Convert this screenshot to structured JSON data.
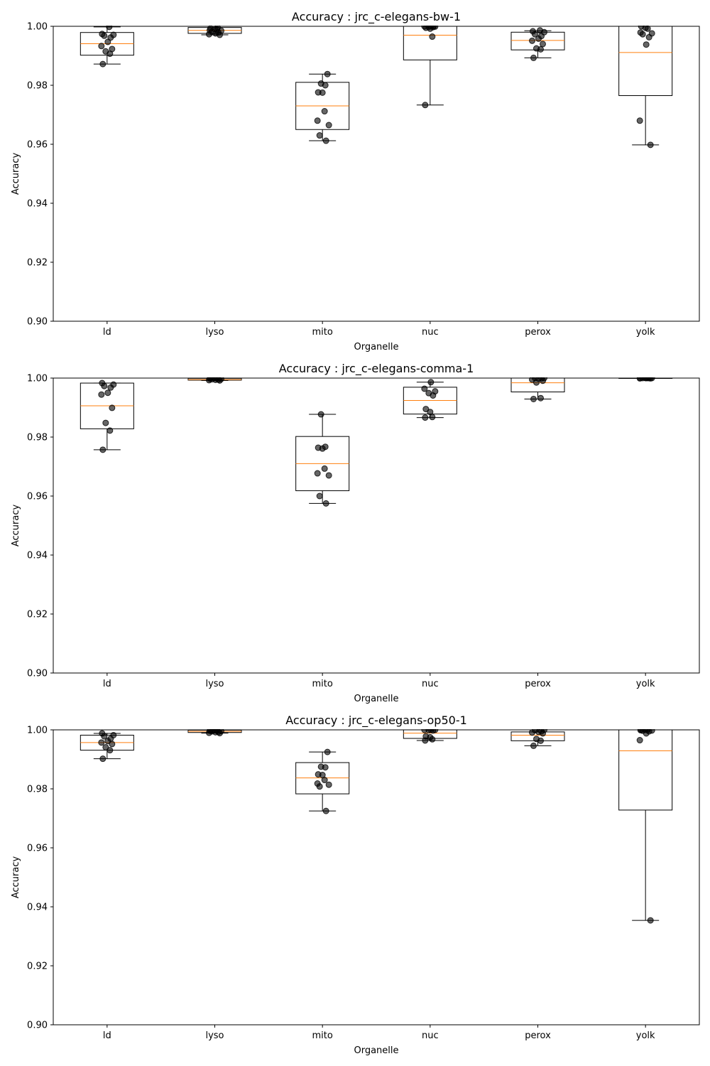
{
  "colors": {
    "box": "#000000",
    "median": "#ff7f0e",
    "point": "#000000"
  },
  "chart_data": [
    {
      "type": "box",
      "title": "Accuracy : jrc_c-elegans-bw-1",
      "xlabel": "Organelle",
      "ylabel": "Accuracy",
      "ylim": [
        0.9,
        1.0
      ],
      "yticks": [
        "0.90",
        "0.92",
        "0.94",
        "0.96",
        "0.98",
        "1.00"
      ],
      "categories": [
        "ld",
        "lyso",
        "mito",
        "nuc",
        "perox",
        "yolk"
      ],
      "boxes": [
        {
          "whislo": 0.9872,
          "q1": 0.9902,
          "med": 0.9941,
          "q3": 0.9979,
          "whishi": 0.9998
        },
        {
          "whislo": 0.9971,
          "q1": 0.9976,
          "med": 0.9986,
          "q3": 0.9996,
          "whishi": 1.0
        },
        {
          "whislo": 0.9612,
          "q1": 0.965,
          "med": 0.973,
          "q3": 0.981,
          "whishi": 0.9838
        },
        {
          "whislo": 0.9733,
          "q1": 0.9886,
          "med": 0.997,
          "q3": 1.0,
          "whishi": 1.0
        },
        {
          "whislo": 0.9893,
          "q1": 0.992,
          "med": 0.9952,
          "q3": 0.998,
          "whishi": 0.9985
        },
        {
          "whislo": 0.9598,
          "q1": 0.9765,
          "med": 0.9911,
          "q3": 1.0,
          "whishi": 1.0
        }
      ],
      "points": [
        [
          0.9872,
          0.9907,
          0.9915,
          0.9923,
          0.9933,
          0.9947,
          0.9962,
          0.9968,
          0.9971,
          0.9974,
          0.9998
        ],
        [
          0.9971,
          0.9973,
          0.9976,
          0.9979,
          0.9982,
          0.9985,
          0.9987,
          0.9989,
          0.9991,
          0.9993,
          0.9996
        ],
        [
          0.9612,
          0.963,
          0.9665,
          0.968,
          0.9712,
          0.9775,
          0.9776,
          0.98,
          0.9806,
          0.9838
        ],
        [
          0.9733,
          0.9965,
          0.9992,
          0.9995,
          0.9997,
          0.9998,
          0.9999,
          1.0,
          1.0,
          1.0
        ],
        [
          0.9893,
          0.9922,
          0.9925,
          0.994,
          0.9951,
          0.9958,
          0.9967,
          0.9973,
          0.998,
          0.9983,
          0.9986
        ],
        [
          0.9598,
          0.968,
          0.9938,
          0.9963,
          0.9973,
          0.9976,
          0.9979,
          0.9992,
          0.9995,
          1.0
        ]
      ]
    },
    {
      "type": "box",
      "title": "Accuracy : jrc_c-elegans-comma-1",
      "xlabel": "Organelle",
      "ylabel": "Accuracy",
      "ylim": [
        0.9,
        1.0
      ],
      "yticks": [
        "0.90",
        "0.92",
        "0.94",
        "0.96",
        "0.98",
        "1.00"
      ],
      "categories": [
        "ld",
        "lyso",
        "mito",
        "nuc",
        "perox",
        "yolk"
      ],
      "boxes": [
        {
          "whislo": 0.9757,
          "q1": 0.9828,
          "med": 0.9906,
          "q3": 0.9983,
          "whishi": 0.9983
        },
        {
          "whislo": 0.9992,
          "q1": 0.9993,
          "med": 0.9995,
          "q3": 0.9999,
          "whishi": 1.0
        },
        {
          "whislo": 0.9575,
          "q1": 0.9618,
          "med": 0.971,
          "q3": 0.9802,
          "whishi": 0.9877
        },
        {
          "whislo": 0.9866,
          "q1": 0.9878,
          "med": 0.9924,
          "q3": 0.9969,
          "whishi": 0.9986
        },
        {
          "whislo": 0.9929,
          "q1": 0.9953,
          "med": 0.9984,
          "q3": 1.0,
          "whishi": 1.0
        },
        {
          "whislo": 0.9999,
          "q1": 0.9999,
          "med": 1.0,
          "q3": 1.0,
          "whishi": 1.0
        }
      ],
      "points": [
        [
          0.9757,
          0.9822,
          0.9848,
          0.9899,
          0.9944,
          0.995,
          0.9968,
          0.9973,
          0.9978,
          0.9983
        ],
        [
          0.9992,
          0.9993,
          0.9994,
          0.9995,
          0.9996,
          0.9997,
          0.9998,
          0.9999,
          1.0,
          1.0
        ],
        [
          0.9575,
          0.96,
          0.967,
          0.9677,
          0.9693,
          0.9761,
          0.9764,
          0.9767,
          0.9877
        ],
        [
          0.9866,
          0.9868,
          0.9885,
          0.9895,
          0.9941,
          0.9949,
          0.9955,
          0.9964,
          0.9986
        ],
        [
          0.9929,
          0.9932,
          0.9985,
          0.9991,
          0.9995,
          0.9998,
          0.9999,
          1.0,
          1.0
        ],
        [
          0.9999,
          0.9999,
          1.0,
          1.0,
          1.0,
          1.0,
          1.0,
          1.0,
          1.0
        ]
      ]
    },
    {
      "type": "box",
      "title": "Accuracy : jrc_c-elegans-op50-1",
      "xlabel": "Organelle",
      "ylabel": "Accuracy",
      "ylim": [
        0.9,
        1.0
      ],
      "yticks": [
        "0.90",
        "0.92",
        "0.94",
        "0.96",
        "0.98",
        "1.00"
      ],
      "categories": [
        "ld",
        "lyso",
        "mito",
        "nuc",
        "perox",
        "yolk"
      ],
      "boxes": [
        {
          "whislo": 0.9902,
          "q1": 0.9931,
          "med": 0.9957,
          "q3": 0.9982,
          "whishi": 0.9988
        },
        {
          "whislo": 0.9989,
          "q1": 0.9991,
          "med": 0.9995,
          "q3": 0.9999,
          "whishi": 1.0
        },
        {
          "whislo": 0.9725,
          "q1": 0.9783,
          "med": 0.9837,
          "q3": 0.9889,
          "whishi": 0.9925
        },
        {
          "whislo": 0.9964,
          "q1": 0.9971,
          "med": 0.9989,
          "q3": 1.0,
          "whishi": 1.0
        },
        {
          "whislo": 0.9946,
          "q1": 0.9963,
          "med": 0.9982,
          "q3": 0.9993,
          "whishi": 1.0
        },
        {
          "whislo": 0.9354,
          "q1": 0.9728,
          "med": 0.9929,
          "q3": 1.0,
          "whishi": 1.0
        }
      ],
      "points": [
        [
          0.9902,
          0.9931,
          0.9941,
          0.9952,
          0.9957,
          0.9962,
          0.997,
          0.9978,
          0.9982,
          0.9988
        ],
        [
          0.9989,
          0.999,
          0.9992,
          0.9993,
          0.9995,
          0.9996,
          0.9997,
          0.9998,
          0.9999,
          1.0
        ],
        [
          0.9725,
          0.9808,
          0.9814,
          0.9818,
          0.983,
          0.9847,
          0.9849,
          0.9873,
          0.9875,
          0.9925
        ],
        [
          0.9964,
          0.9968,
          0.9975,
          0.9978,
          0.9998,
          0.9999,
          1.0,
          1.0,
          1.0
        ],
        [
          0.9946,
          0.9963,
          0.9969,
          0.9988,
          0.9991,
          0.9993,
          0.9995,
          0.9999,
          1.0
        ],
        [
          0.9354,
          0.9965,
          0.9988,
          0.9995,
          0.9997,
          0.9998,
          0.9999,
          1.0,
          1.0,
          1.0
        ]
      ]
    }
  ]
}
